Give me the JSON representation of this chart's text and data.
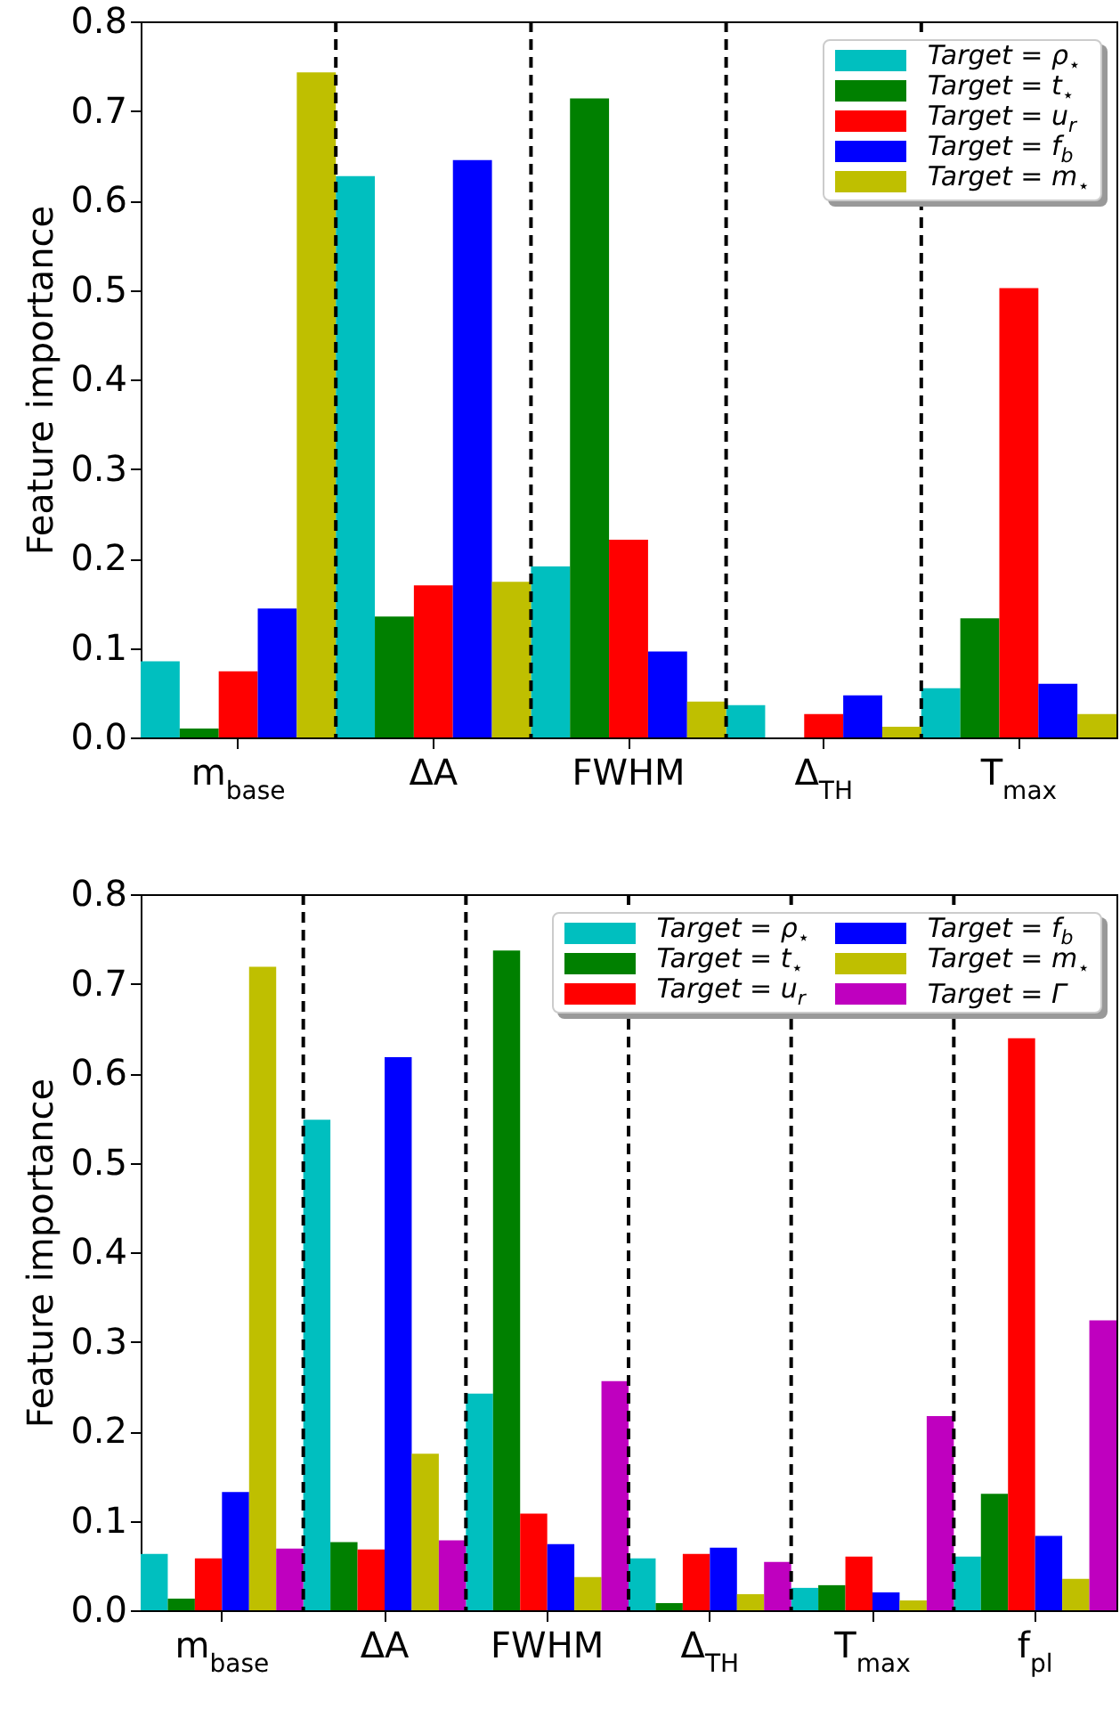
{
  "chart_data": [
    {
      "type": "bar",
      "ylabel": "Feature importance",
      "categories": [
        "m$_{base}$",
        "ΔA",
        "FWHM",
        "Δ$_{TH}$",
        "T$_{max}$"
      ],
      "ylim": [
        0,
        0.8
      ],
      "yticks": [
        {
          "value": 0,
          "label": "0.0"
        },
        0.1,
        0.2,
        0.3,
        0.4,
        0.5,
        0.6,
        0.7,
        0.8
      ],
      "legend": "top right",
      "grid": false,
      "series": [
        {
          "name": "Target = ρ$_{⋆}$",
          "color": "#00bfbf",
          "values": [
            0.085,
            0.627,
            0.191,
            0.036,
            0.055
          ]
        },
        {
          "name": "Target = t$_{⋆}$",
          "color": "#008000",
          "values": [
            0.01,
            0.135,
            0.714,
            0.0,
            0.133
          ]
        },
        {
          "name": "Target = u$_{r}$",
          "color": "#ff0000",
          "values": [
            0.074,
            0.17,
            0.221,
            0.026,
            0.502
          ]
        },
        {
          "name": "Target = f$_{b}$",
          "color": "#0000ff",
          "values": [
            0.144,
            0.645,
            0.096,
            0.047,
            0.06
          ]
        },
        {
          "name": "Target = m$_{⋆}$",
          "color": "#bfbf00",
          "values": [
            0.743,
            0.174,
            0.04,
            0.012,
            0.026
          ]
        }
      ]
    },
    {
      "type": "bar",
      "ylabel": "Feature importance",
      "categories": [
        "m$_{base}$",
        "ΔA",
        "FWHM",
        "Δ$_{TH}$",
        "T$_{max}$",
        "f$_{pl}$"
      ],
      "ylim": [
        0,
        0.8
      ],
      "yticks": [
        {
          "value": 0,
          "label": "0.0"
        },
        0.1,
        0.2,
        0.3,
        0.4,
        0.5,
        0.6,
        0.7,
        0.8
      ],
      "legend": "top right",
      "grid": false,
      "series": [
        {
          "name": "Target = ρ$_{⋆}$",
          "color": "#00bfbf",
          "values": [
            0.063,
            0.548,
            0.242,
            0.058,
            0.025,
            0.06
          ]
        },
        {
          "name": "Target = t$_{⋆}$",
          "color": "#008000",
          "values": [
            0.013,
            0.076,
            0.737,
            0.008,
            0.028,
            0.13
          ]
        },
        {
          "name": "Target = u$_{r}$",
          "color": "#ff0000",
          "values": [
            0.058,
            0.068,
            0.108,
            0.063,
            0.06,
            0.639
          ]
        },
        {
          "name": "Target = f$_{b}$",
          "color": "#0000ff",
          "values": [
            0.132,
            0.618,
            0.074,
            0.07,
            0.02,
            0.083
          ]
        },
        {
          "name": "Target = m$_{⋆}$",
          "color": "#bfbf00",
          "values": [
            0.719,
            0.175,
            0.037,
            0.018,
            0.011,
            0.035
          ]
        },
        {
          "name": "Target = Γ",
          "color": "#bf00bf",
          "values": [
            0.069,
            0.078,
            0.256,
            0.054,
            0.217,
            0.324
          ]
        }
      ]
    }
  ]
}
